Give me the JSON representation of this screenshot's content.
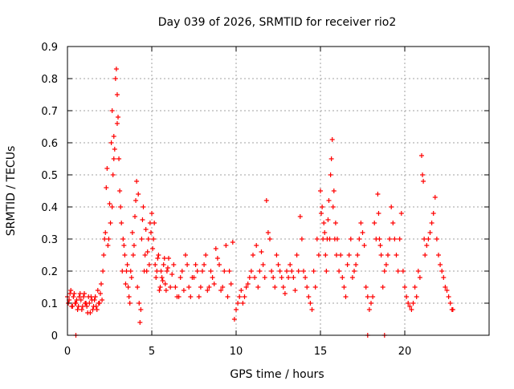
{
  "chart_data": {
    "type": "scatter",
    "title": "Day 039 of 2026, SRMTID for receiver rio2",
    "xlabel": "GPS time / hours",
    "ylabel": "SRMTID / TECUs",
    "xlim": [
      0,
      25
    ],
    "ylim": [
      0,
      0.9
    ],
    "xticks": [
      0,
      5,
      10,
      15,
      20
    ],
    "xtick_labels": [
      "0",
      "5",
      "10",
      "15",
      "20"
    ],
    "yticks": [
      0,
      0.1,
      0.2,
      0.3,
      0.4,
      0.5,
      0.6,
      0.7,
      0.8,
      0.9
    ],
    "ytick_labels": [
      "0",
      "0.1",
      "0.2",
      "0.3",
      "0.4",
      "0.5",
      "0.6",
      "0.7",
      "0.8",
      "0.9"
    ],
    "grid": true,
    "marker": "plus",
    "color": "#ff0000",
    "series": [
      {
        "name": "SRMTID",
        "points": [
          [
            0.0,
            0.12
          ],
          [
            0.1,
            0.11
          ],
          [
            0.2,
            0.14
          ],
          [
            0.3,
            0.09
          ],
          [
            0.4,
            0.13
          ],
          [
            0.5,
            0.1
          ],
          [
            0.5,
            0.0
          ],
          [
            0.6,
            0.08
          ],
          [
            0.7,
            0.12
          ],
          [
            0.8,
            0.11
          ],
          [
            0.9,
            0.09
          ],
          [
            1.0,
            0.13
          ],
          [
            1.1,
            0.1
          ],
          [
            1.2,
            0.07
          ],
          [
            1.3,
            0.1
          ],
          [
            1.4,
            0.12
          ],
          [
            1.5,
            0.08
          ],
          [
            1.6,
            0.11
          ],
          [
            1.7,
            0.09
          ],
          [
            1.8,
            0.14
          ],
          [
            1.9,
            0.1
          ],
          [
            2.0,
            0.16
          ],
          [
            2.1,
            0.2
          ],
          [
            2.2,
            0.3
          ],
          [
            2.3,
            0.46
          ],
          [
            2.35,
            0.52
          ],
          [
            2.4,
            0.28
          ],
          [
            2.5,
            0.41
          ],
          [
            2.55,
            0.35
          ],
          [
            2.6,
            0.6
          ],
          [
            2.65,
            0.7
          ],
          [
            2.7,
            0.5
          ],
          [
            2.75,
            0.62
          ],
          [
            2.8,
            0.58
          ],
          [
            2.85,
            0.8
          ],
          [
            2.9,
            0.83
          ],
          [
            2.95,
            0.75
          ],
          [
            3.0,
            0.68
          ],
          [
            3.05,
            0.55
          ],
          [
            3.1,
            0.45
          ],
          [
            3.2,
            0.35
          ],
          [
            3.3,
            0.3
          ],
          [
            3.4,
            0.25
          ],
          [
            3.5,
            0.2
          ],
          [
            3.6,
            0.15
          ],
          [
            3.7,
            0.1
          ],
          [
            3.8,
            0.18
          ],
          [
            3.9,
            0.25
          ],
          [
            4.0,
            0.37
          ],
          [
            4.1,
            0.48
          ],
          [
            4.2,
            0.44
          ],
          [
            4.25,
            0.1
          ],
          [
            4.3,
            0.04
          ],
          [
            4.4,
            0.3
          ],
          [
            4.5,
            0.4
          ],
          [
            4.6,
            0.25
          ],
          [
            4.7,
            0.2
          ],
          [
            4.8,
            0.3
          ],
          [
            4.9,
            0.35
          ],
          [
            5.0,
            0.38
          ],
          [
            5.1,
            0.3
          ],
          [
            5.2,
            0.22
          ],
          [
            5.3,
            0.2
          ],
          [
            5.4,
            0.25
          ],
          [
            5.5,
            0.15
          ],
          [
            5.6,
            0.18
          ],
          [
            5.7,
            0.22
          ],
          [
            5.8,
            0.16
          ],
          [
            5.9,
            0.2
          ],
          [
            6.0,
            0.24
          ],
          [
            6.2,
            0.19
          ],
          [
            6.4,
            0.15
          ],
          [
            6.6,
            0.12
          ],
          [
            6.8,
            0.2
          ],
          [
            7.0,
            0.25
          ],
          [
            7.2,
            0.15
          ],
          [
            7.4,
            0.18
          ],
          [
            7.6,
            0.22
          ],
          [
            7.8,
            0.12
          ],
          [
            8.0,
            0.2
          ],
          [
            8.2,
            0.25
          ],
          [
            8.4,
            0.15
          ],
          [
            8.6,
            0.18
          ],
          [
            8.8,
            0.27
          ],
          [
            9.0,
            0.22
          ],
          [
            9.2,
            0.15
          ],
          [
            9.4,
            0.28
          ],
          [
            9.5,
            0.12
          ],
          [
            9.6,
            0.2
          ],
          [
            9.8,
            0.29
          ],
          [
            9.9,
            0.05
          ],
          [
            10.0,
            0.08
          ],
          [
            10.2,
            0.12
          ],
          [
            10.4,
            0.1
          ],
          [
            10.6,
            0.15
          ],
          [
            10.8,
            0.18
          ],
          [
            11.0,
            0.25
          ],
          [
            11.2,
            0.28
          ],
          [
            11.4,
            0.2
          ],
          [
            11.6,
            0.22
          ],
          [
            11.8,
            0.42
          ],
          [
            12.0,
            0.3
          ],
          [
            12.2,
            0.18
          ],
          [
            12.4,
            0.25
          ],
          [
            12.6,
            0.2
          ],
          [
            12.8,
            0.15
          ],
          [
            13.0,
            0.2
          ],
          [
            13.2,
            0.22
          ],
          [
            13.4,
            0.18
          ],
          [
            13.6,
            0.25
          ],
          [
            13.8,
            0.37
          ],
          [
            14.0,
            0.2
          ],
          [
            14.2,
            0.15
          ],
          [
            14.4,
            0.1
          ],
          [
            14.6,
            0.2
          ],
          [
            14.8,
            0.3
          ],
          [
            15.0,
            0.45
          ],
          [
            15.1,
            0.4
          ],
          [
            15.2,
            0.35
          ],
          [
            15.3,
            0.25
          ],
          [
            15.4,
            0.3
          ],
          [
            15.5,
            0.42
          ],
          [
            15.6,
            0.5
          ],
          [
            15.7,
            0.61
          ],
          [
            15.8,
            0.45
          ],
          [
            15.9,
            0.35
          ],
          [
            16.0,
            0.3
          ],
          [
            16.2,
            0.25
          ],
          [
            16.4,
            0.15
          ],
          [
            16.6,
            0.22
          ],
          [
            16.8,
            0.3
          ],
          [
            17.0,
            0.2
          ],
          [
            17.2,
            0.25
          ],
          [
            17.4,
            0.35
          ],
          [
            17.6,
            0.28
          ],
          [
            17.8,
            0.12
          ],
          [
            17.8,
            0.0
          ],
          [
            18.0,
            0.1
          ],
          [
            18.2,
            0.35
          ],
          [
            18.4,
            0.44
          ],
          [
            18.5,
            0.3
          ],
          [
            18.6,
            0.25
          ],
          [
            18.8,
            0.2
          ],
          [
            18.8,
            0.0
          ],
          [
            19.0,
            0.25
          ],
          [
            19.2,
            0.4
          ],
          [
            19.4,
            0.3
          ],
          [
            19.6,
            0.2
          ],
          [
            19.8,
            0.38
          ],
          [
            20.0,
            0.15
          ],
          [
            20.2,
            0.1
          ],
          [
            20.4,
            0.08
          ],
          [
            20.6,
            0.15
          ],
          [
            20.8,
            0.2
          ],
          [
            21.0,
            0.56
          ],
          [
            21.1,
            0.48
          ],
          [
            21.2,
            0.25
          ],
          [
            21.4,
            0.3
          ],
          [
            21.6,
            0.35
          ],
          [
            21.8,
            0.43
          ],
          [
            22.0,
            0.25
          ],
          [
            22.2,
            0.2
          ],
          [
            22.4,
            0.15
          ],
          [
            22.6,
            0.12
          ],
          [
            22.8,
            0.08
          ],
          [
            0.05,
            0.1
          ],
          [
            0.15,
            0.13
          ],
          [
            0.25,
            0.09
          ],
          [
            0.35,
            0.12
          ],
          [
            0.45,
            0.1
          ],
          [
            0.55,
            0.11
          ],
          [
            0.65,
            0.09
          ],
          [
            0.75,
            0.13
          ],
          [
            0.85,
            0.08
          ],
          [
            0.95,
            0.12
          ],
          [
            1.05,
            0.1
          ],
          [
            1.15,
            0.09
          ],
          [
            1.25,
            0.12
          ],
          [
            1.35,
            0.07
          ],
          [
            1.45,
            0.11
          ],
          [
            1.55,
            0.09
          ],
          [
            1.65,
            0.12
          ],
          [
            1.75,
            0.08
          ],
          [
            1.85,
            0.1
          ],
          [
            1.95,
            0.13
          ],
          [
            2.05,
            0.11
          ],
          [
            2.15,
            0.25
          ],
          [
            2.25,
            0.32
          ],
          [
            2.45,
            0.3
          ],
          [
            2.65,
            0.4
          ],
          [
            2.75,
            0.55
          ],
          [
            2.95,
            0.66
          ],
          [
            3.15,
            0.4
          ],
          [
            3.25,
            0.2
          ],
          [
            3.35,
            0.28
          ],
          [
            3.45,
            0.16
          ],
          [
            3.55,
            0.22
          ],
          [
            3.65,
            0.12
          ],
          [
            3.75,
            0.2
          ],
          [
            3.85,
            0.32
          ],
          [
            3.95,
            0.28
          ],
          [
            4.05,
            0.42
          ],
          [
            4.15,
            0.15
          ],
          [
            4.35,
            0.08
          ],
          [
            4.45,
            0.36
          ],
          [
            4.55,
            0.2
          ],
          [
            4.65,
            0.33
          ],
          [
            4.75,
            0.26
          ],
          [
            4.85,
            0.22
          ],
          [
            4.95,
            0.32
          ],
          [
            5.05,
            0.27
          ],
          [
            5.15,
            0.35
          ],
          [
            5.25,
            0.18
          ],
          [
            5.35,
            0.24
          ],
          [
            5.45,
            0.14
          ],
          [
            5.55,
            0.2
          ],
          [
            5.65,
            0.17
          ],
          [
            5.75,
            0.24
          ],
          [
            5.85,
            0.14
          ],
          [
            5.95,
            0.21
          ],
          [
            6.1,
            0.15
          ],
          [
            6.3,
            0.22
          ],
          [
            6.5,
            0.12
          ],
          [
            6.7,
            0.18
          ],
          [
            6.9,
            0.14
          ],
          [
            7.1,
            0.22
          ],
          [
            7.3,
            0.12
          ],
          [
            7.5,
            0.18
          ],
          [
            7.7,
            0.2
          ],
          [
            7.9,
            0.15
          ],
          [
            8.1,
            0.22
          ],
          [
            8.3,
            0.14
          ],
          [
            8.5,
            0.2
          ],
          [
            8.7,
            0.16
          ],
          [
            8.9,
            0.24
          ],
          [
            9.1,
            0.14
          ],
          [
            9.3,
            0.2
          ],
          [
            9.7,
            0.16
          ],
          [
            10.1,
            0.1
          ],
          [
            10.3,
            0.14
          ],
          [
            10.5,
            0.12
          ],
          [
            10.7,
            0.16
          ],
          [
            10.9,
            0.2
          ],
          [
            11.1,
            0.18
          ],
          [
            11.3,
            0.15
          ],
          [
            11.5,
            0.26
          ],
          [
            11.7,
            0.18
          ],
          [
            11.9,
            0.32
          ],
          [
            12.1,
            0.2
          ],
          [
            12.3,
            0.15
          ],
          [
            12.5,
            0.22
          ],
          [
            12.7,
            0.18
          ],
          [
            12.9,
            0.13
          ],
          [
            13.1,
            0.18
          ],
          [
            13.3,
            0.2
          ],
          [
            13.5,
            0.14
          ],
          [
            13.7,
            0.2
          ],
          [
            13.9,
            0.3
          ],
          [
            14.1,
            0.18
          ],
          [
            14.3,
            0.12
          ],
          [
            14.5,
            0.08
          ],
          [
            14.7,
            0.15
          ],
          [
            14.9,
            0.25
          ],
          [
            15.05,
            0.38
          ],
          [
            15.15,
            0.3
          ],
          [
            15.25,
            0.32
          ],
          [
            15.35,
            0.2
          ],
          [
            15.45,
            0.36
          ],
          [
            15.55,
            0.3
          ],
          [
            15.65,
            0.55
          ],
          [
            15.75,
            0.4
          ],
          [
            15.85,
            0.3
          ],
          [
            15.95,
            0.25
          ],
          [
            16.1,
            0.2
          ],
          [
            16.3,
            0.18
          ],
          [
            16.5,
            0.12
          ],
          [
            16.7,
            0.25
          ],
          [
            16.9,
            0.18
          ],
          [
            17.1,
            0.22
          ],
          [
            17.3,
            0.3
          ],
          [
            17.5,
            0.32
          ],
          [
            17.7,
            0.15
          ],
          [
            17.9,
            0.08
          ],
          [
            18.1,
            0.12
          ],
          [
            18.3,
            0.3
          ],
          [
            18.45,
            0.38
          ],
          [
            18.55,
            0.28
          ],
          [
            18.7,
            0.15
          ],
          [
            18.9,
            0.22
          ],
          [
            19.1,
            0.3
          ],
          [
            19.3,
            0.35
          ],
          [
            19.5,
            0.25
          ],
          [
            19.7,
            0.3
          ],
          [
            19.9,
            0.2
          ],
          [
            20.1,
            0.12
          ],
          [
            20.3,
            0.09
          ],
          [
            20.5,
            0.1
          ],
          [
            20.7,
            0.12
          ],
          [
            20.9,
            0.18
          ],
          [
            21.05,
            0.5
          ],
          [
            21.15,
            0.3
          ],
          [
            21.3,
            0.28
          ],
          [
            21.5,
            0.32
          ],
          [
            21.7,
            0.38
          ],
          [
            21.9,
            0.3
          ],
          [
            22.1,
            0.22
          ],
          [
            22.3,
            0.18
          ],
          [
            22.5,
            0.14
          ],
          [
            22.7,
            0.1
          ],
          [
            22.85,
            0.08
          ]
        ]
      }
    ]
  }
}
